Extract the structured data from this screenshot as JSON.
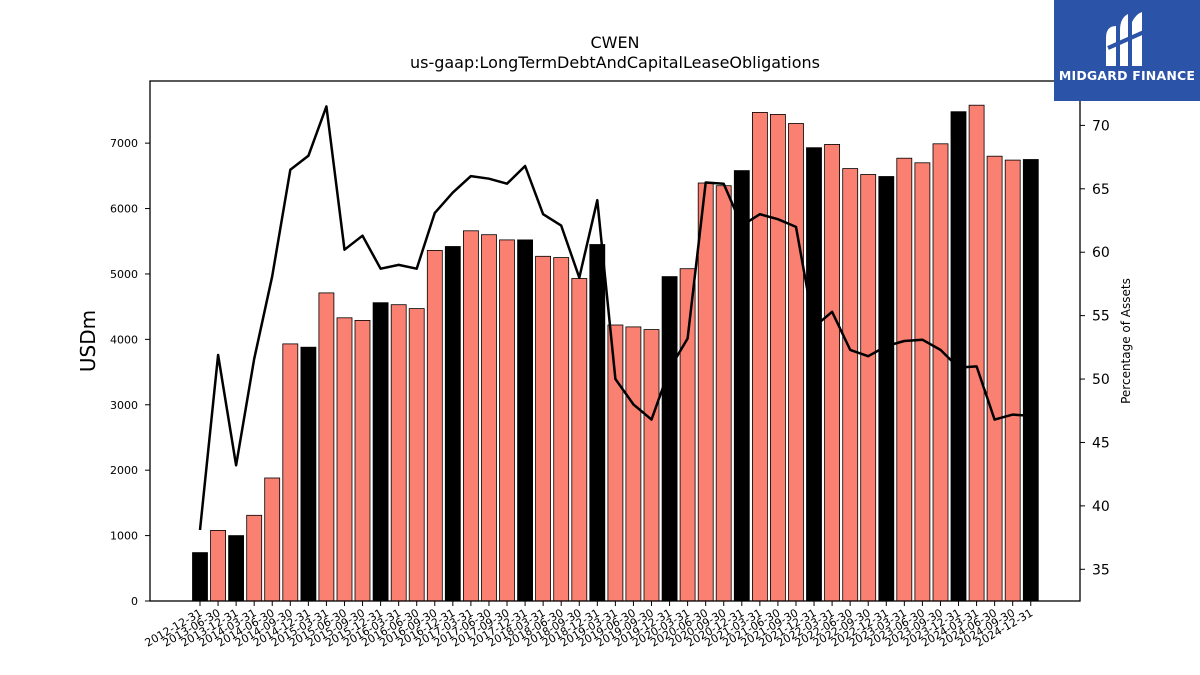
{
  "brand": {
    "name": "MIDGARD FINANCE",
    "bg_color": "#2b54a8"
  },
  "chart_data": {
    "type": "bar",
    "title": "CWEN",
    "subtitle": "us-gaap:LongTermDebtAndCapitalLeaseObligations",
    "ylabel": "USDm",
    "y2label": "Percentage of Assets",
    "ylim": [
      0,
      7950
    ],
    "y2lim": [
      32.5,
      73.5
    ],
    "yticks": [
      0,
      1000,
      2000,
      3000,
      4000,
      5000,
      6000,
      7000
    ],
    "y2ticks": [
      35,
      40,
      45,
      50,
      55,
      60,
      65,
      70
    ],
    "colors": {
      "annual": "#000000",
      "quarter": "#fa8072",
      "line": "#000000"
    },
    "categories": [
      "2012-12-31",
      "2013-06-30",
      "2013-12-31",
      "2014-03-31",
      "2014-06-30",
      "2014-09-30",
      "2014-12-31",
      "2015-03-31",
      "2015-06-30",
      "2015-09-30",
      "2015-12-31",
      "2016-03-31",
      "2016-06-30",
      "2016-09-30",
      "2016-12-31",
      "2017-03-31",
      "2017-06-30",
      "2017-09-30",
      "2017-12-31",
      "2018-03-31",
      "2018-06-30",
      "2018-09-30",
      "2018-12-31",
      "2019-03-31",
      "2019-06-30",
      "2019-09-30",
      "2019-12-31",
      "2020-03-31",
      "2020-06-30",
      "2020-09-30",
      "2020-12-31",
      "2021-03-31",
      "2021-06-30",
      "2021-09-30",
      "2021-12-31",
      "2022-03-31",
      "2022-06-30",
      "2022-09-30",
      "2022-12-31",
      "2023-03-31",
      "2023-06-30",
      "2023-09-30",
      "2023-12-31",
      "2024-03-31",
      "2024-06-30",
      "2024-09-30",
      "2024-12-31"
    ],
    "series": [
      {
        "type": "bar",
        "values": [
          740,
          1080,
          1000,
          1310,
          1880,
          3930,
          3880,
          4710,
          4330,
          4290,
          4560,
          4530,
          4470,
          5360,
          5420,
          5660,
          5600,
          5520,
          5520,
          5270,
          5250,
          4930,
          5450,
          4220,
          4190,
          4150,
          4960,
          5080,
          6390,
          6350,
          6580,
          7470,
          7440,
          7300,
          6930,
          6980,
          6610,
          6520,
          6490,
          6770,
          6700,
          6990,
          7480,
          7580,
          6800,
          6740,
          6750
        ]
      },
      {
        "type": "line",
        "axis": "right",
        "values": [
          38.1,
          51.9,
          43.2,
          51.6,
          58.1,
          66.5,
          67.6,
          71.5,
          60.2,
          61.3,
          58.7,
          59.0,
          58.7,
          63.1,
          64.7,
          66.0,
          65.8,
          65.4,
          66.8,
          63.0,
          62.1,
          58.0,
          64.1,
          50.0,
          48.0,
          46.8,
          50.8,
          53.2,
          65.5,
          65.4,
          62.1,
          63.0,
          62.6,
          62.0,
          54.1,
          55.3,
          52.3,
          51.8,
          52.6,
          53.0,
          53.1,
          52.3,
          50.9,
          51.0,
          46.8,
          47.2,
          47.1
        ]
      }
    ]
  }
}
